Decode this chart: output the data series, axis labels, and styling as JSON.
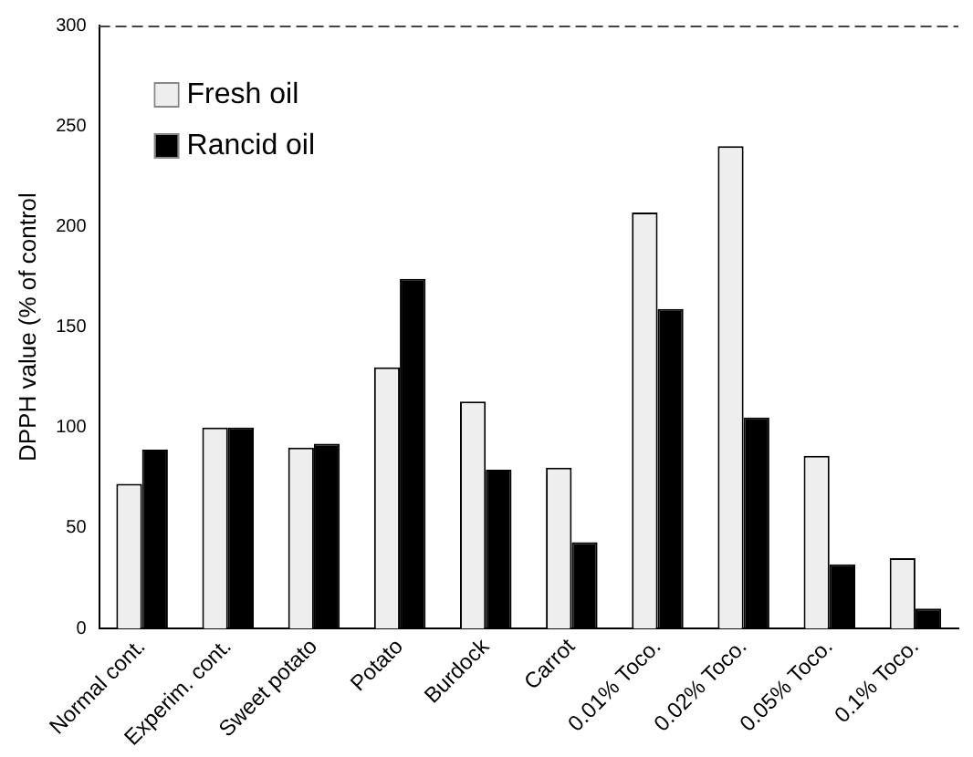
{
  "chart_data": {
    "type": "bar",
    "ylabel": "DPPH value (% of control",
    "categories": [
      "Normal cont.",
      "Experim. cont.",
      "Sweet potato",
      "Potato",
      "Burdock",
      "Carrot",
      "0.01% Toco.",
      "0.02% Toco.",
      "0.05% Toco.",
      "0.1% Toco."
    ],
    "series": [
      {
        "name": "Fresh oil",
        "color": "#eeeeee",
        "values": [
          72,
          100,
          90,
          130,
          113,
          80,
          207,
          240,
          86,
          35
        ]
      },
      {
        "name": "Rancid oil",
        "color": "#000000",
        "values": [
          89,
          100,
          92,
          174,
          79,
          43,
          159,
          105,
          32,
          10
        ]
      }
    ],
    "ylim": [
      0,
      300
    ],
    "yticks": [
      0,
      50,
      100,
      150,
      200,
      250,
      300
    ],
    "grid": false,
    "legend": "top left"
  }
}
